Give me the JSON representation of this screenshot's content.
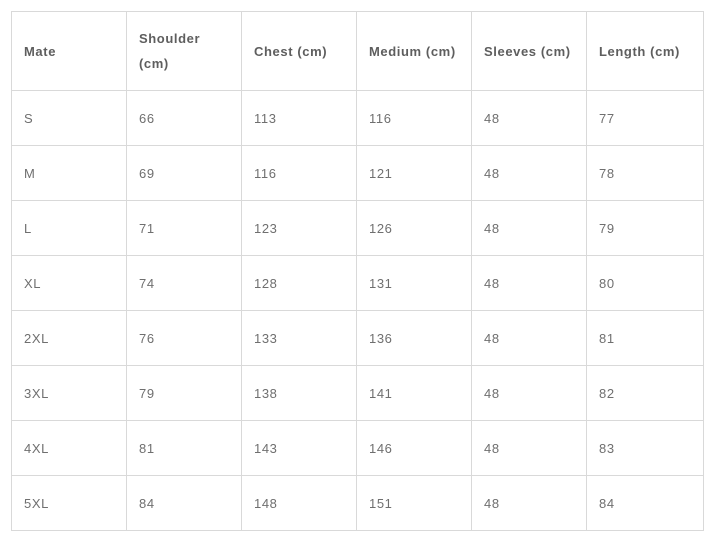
{
  "table": {
    "headers": [
      "Mate",
      "Shoulder (cm)",
      "Chest (cm)",
      "Medium (cm)",
      "Sleeves (cm)",
      "Length (cm)"
    ],
    "rows": [
      [
        "S",
        "66",
        "113",
        "116",
        "48",
        "77"
      ],
      [
        "M",
        "69",
        "116",
        "121",
        "48",
        "78"
      ],
      [
        "L",
        "71",
        "123",
        "126",
        "48",
        "79"
      ],
      [
        "XL",
        "74",
        "128",
        "131",
        "48",
        "80"
      ],
      [
        "2XL",
        "76",
        "133",
        "136",
        "48",
        "81"
      ],
      [
        "3XL",
        "79",
        "138",
        "141",
        "48",
        "82"
      ],
      [
        "4XL",
        "81",
        "143",
        "146",
        "48",
        "83"
      ],
      [
        "5XL",
        "84",
        "148",
        "151",
        "48",
        "84"
      ]
    ]
  }
}
